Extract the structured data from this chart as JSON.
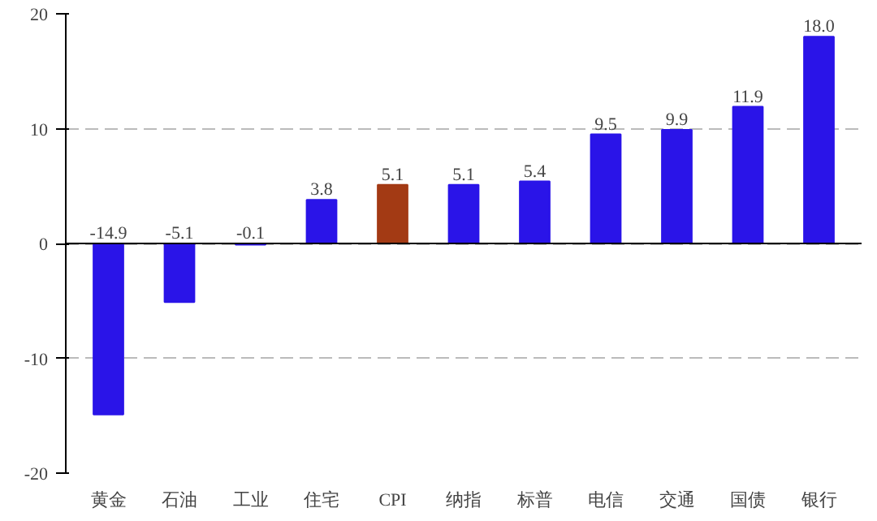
{
  "chart_data": {
    "type": "bar",
    "categories": [
      "黄金",
      "石油",
      "工业",
      "住宅",
      "CPI",
      "纳指",
      "标普",
      "电信",
      "交通",
      "国债",
      "银行"
    ],
    "values": [
      -14.9,
      -5.1,
      -0.1,
      3.8,
      5.1,
      5.1,
      5.4,
      9.5,
      9.9,
      11.9,
      18.0
    ],
    "colors": [
      "#2a14e8",
      "#2a14e8",
      "#2a14e8",
      "#2a14e8",
      "#a33a14",
      "#2a14e8",
      "#2a14e8",
      "#2a14e8",
      "#2a14e8",
      "#2a14e8",
      "#2a14e8"
    ],
    "value_labels": [
      "-14.9",
      "-5.1",
      "-0.1",
      "3.8",
      "5.1",
      "5.1",
      "5.4",
      "9.5",
      "9.9",
      "11.9",
      "18.0"
    ],
    "ylim": [
      -20,
      20
    ],
    "yticks": [
      -20,
      -10,
      0,
      10,
      20
    ],
    "grid": "y"
  }
}
